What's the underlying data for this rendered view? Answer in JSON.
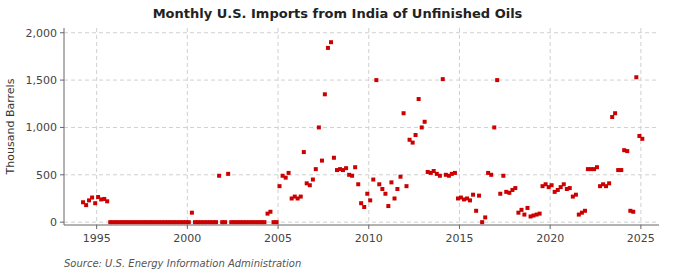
{
  "chart_data": {
    "type": "scatter",
    "title": "Monthly U.S. Imports from India of Unfinished Oils",
    "ylabel": "Thousand Barrels",
    "annotations": [
      "Source: U.S. Energy Information Administration"
    ],
    "color": "#cc0000",
    "marker": "square",
    "grid": true,
    "xlim": [
      1993.2,
      2026.0
    ],
    "ylim": [
      -30,
      2050
    ],
    "xticks": [
      1995,
      2000,
      2005,
      2010,
      2015,
      2020,
      2025
    ],
    "yticks": [
      0,
      500,
      {
        "value": 1000,
        "label": "1,000"
      },
      {
        "value": 1500,
        "label": "1,500"
      },
      {
        "value": 2000,
        "label": "2,000"
      }
    ],
    "x": [
      1994.25,
      1994.42,
      1994.58,
      1994.75,
      1994.92,
      1995.08,
      1995.25,
      1995.42,
      1995.58,
      1995.75,
      1995.92,
      1996.08,
      1996.25,
      1996.42,
      1996.58,
      1996.75,
      1996.92,
      1997.08,
      1997.25,
      1997.42,
      1997.58,
      1997.75,
      1997.92,
      1998.08,
      1998.25,
      1998.42,
      1998.58,
      1998.75,
      1998.92,
      1999.08,
      1999.25,
      1999.42,
      1999.58,
      1999.75,
      1999.92,
      2000.08,
      2000.25,
      2000.42,
      2000.58,
      2000.75,
      2000.92,
      2001.08,
      2001.25,
      2001.42,
      2001.58,
      2001.75,
      2001.92,
      2002.08,
      2002.25,
      2002.42,
      2002.58,
      2002.75,
      2002.92,
      2003.08,
      2003.25,
      2003.42,
      2003.58,
      2003.75,
      2003.92,
      2004.08,
      2004.25,
      2004.42,
      2004.58,
      2004.75,
      2004.92,
      2005.08,
      2005.25,
      2005.42,
      2005.58,
      2005.75,
      2005.92,
      2006.08,
      2006.25,
      2006.42,
      2006.58,
      2006.75,
      2006.92,
      2007.08,
      2007.25,
      2007.42,
      2007.58,
      2007.75,
      2007.92,
      2008.08,
      2008.25,
      2008.42,
      2008.58,
      2008.75,
      2008.92,
      2009.08,
      2009.25,
      2009.42,
      2009.58,
      2009.75,
      2009.92,
      2010.08,
      2010.25,
      2010.42,
      2010.58,
      2010.75,
      2010.92,
      2011.08,
      2011.25,
      2011.42,
      2011.58,
      2011.75,
      2011.92,
      2012.08,
      2012.25,
      2012.42,
      2012.58,
      2012.75,
      2012.92,
      2013.08,
      2013.25,
      2013.42,
      2013.58,
      2013.75,
      2013.92,
      2014.08,
      2014.25,
      2014.42,
      2014.58,
      2014.75,
      2014.92,
      2015.08,
      2015.25,
      2015.42,
      2015.58,
      2015.75,
      2015.92,
      2016.08,
      2016.25,
      2016.42,
      2016.58,
      2016.75,
      2016.92,
      2017.08,
      2017.25,
      2017.42,
      2017.58,
      2017.75,
      2017.92,
      2018.08,
      2018.25,
      2018.42,
      2018.58,
      2018.75,
      2018.92,
      2019.08,
      2019.25,
      2019.42,
      2019.58,
      2019.75,
      2019.92,
      2020.08,
      2020.25,
      2020.42,
      2020.58,
      2020.75,
      2020.92,
      2021.08,
      2021.25,
      2021.42,
      2021.58,
      2021.75,
      2021.92,
      2022.08,
      2022.25,
      2022.42,
      2022.58,
      2022.75,
      2022.92,
      2023.08,
      2023.25,
      2023.42,
      2023.58,
      2023.75,
      2023.92,
      2024.08,
      2024.25,
      2024.42,
      2024.58,
      2024.75,
      2024.92,
      2025.08
    ],
    "values": [
      210,
      180,
      230,
      260,
      200,
      265,
      240,
      245,
      220,
      0,
      0,
      0,
      0,
      0,
      0,
      0,
      0,
      0,
      0,
      0,
      0,
      0,
      0,
      0,
      0,
      0,
      0,
      0,
      0,
      0,
      0,
      0,
      0,
      0,
      0,
      0,
      100,
      0,
      0,
      0,
      0,
      0,
      0,
      0,
      0,
      490,
      0,
      0,
      510,
      0,
      0,
      0,
      0,
      0,
      0,
      0,
      0,
      0,
      0,
      0,
      0,
      90,
      110,
      0,
      0,
      380,
      490,
      470,
      520,
      250,
      270,
      250,
      270,
      740,
      410,
      390,
      450,
      560,
      1000,
      650,
      1350,
      1840,
      1900,
      680,
      550,
      560,
      550,
      570,
      500,
      490,
      580,
      400,
      200,
      160,
      300,
      230,
      450,
      1500,
      400,
      350,
      300,
      170,
      420,
      250,
      350,
      480,
      1150,
      380,
      870,
      840,
      920,
      1300,
      1000,
      1060,
      530,
      520,
      540,
      510,
      490,
      1510,
      500,
      490,
      510,
      520,
      250,
      260,
      240,
      250,
      230,
      290,
      120,
      280,
      0,
      50,
      520,
      500,
      1000,
      1500,
      300,
      490,
      320,
      310,
      340,
      360,
      100,
      130,
      80,
      150,
      60,
      70,
      80,
      90,
      380,
      400,
      370,
      390,
      320,
      340,
      370,
      400,
      350,
      360,
      270,
      290,
      80,
      100,
      120,
      560,
      560,
      560,
      580,
      380,
      400,
      380,
      410,
      1110,
      1150,
      550,
      550,
      760,
      750,
      120,
      110,
      1530,
      910,
      880
    ]
  }
}
